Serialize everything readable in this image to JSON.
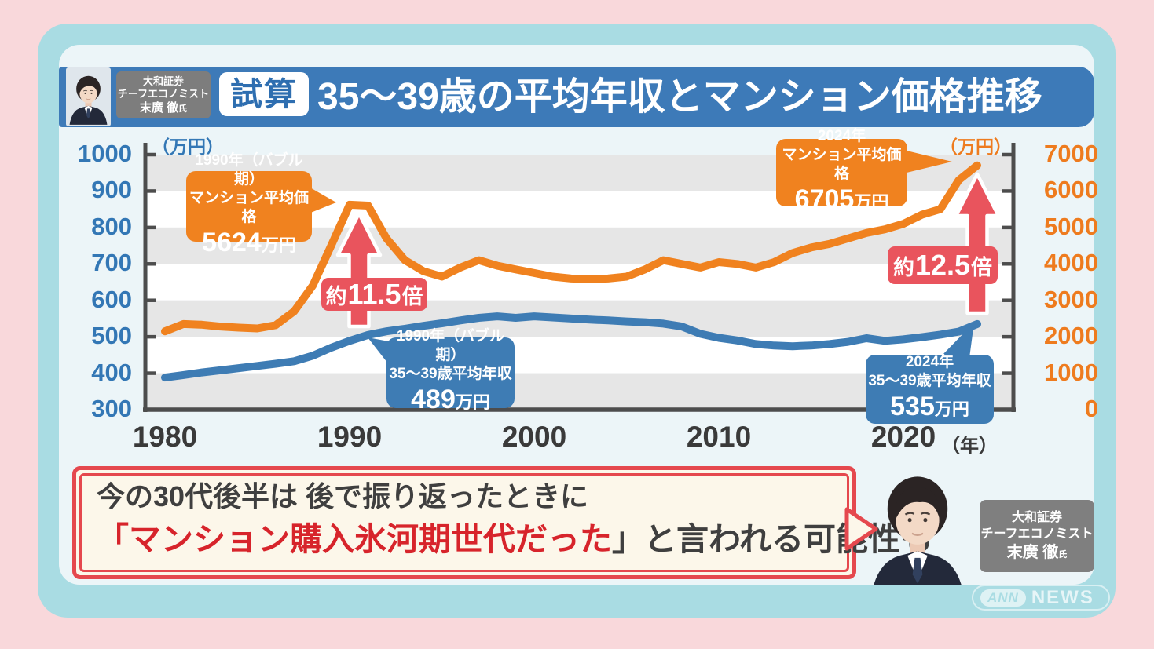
{
  "header": {
    "tag": "試算",
    "title": "35〜39歳の平均年収とマンション価格推移"
  },
  "expert": {
    "line1": "大和証券",
    "line2": "チーフエコノミスト",
    "name": "末廣 徹",
    "honorific": "氏"
  },
  "chart_data": {
    "type": "line",
    "x": [
      1980,
      1981,
      1982,
      1983,
      1984,
      1985,
      1986,
      1987,
      1988,
      1989,
      1990,
      1991,
      1992,
      1993,
      1994,
      1995,
      1996,
      1997,
      1998,
      1999,
      2000,
      2001,
      2002,
      2003,
      2004,
      2005,
      2006,
      2007,
      2008,
      2009,
      2010,
      2011,
      2012,
      2013,
      2014,
      2015,
      2016,
      2017,
      2018,
      2019,
      2020,
      2021,
      2022,
      2023,
      2024
    ],
    "series": [
      {
        "name": "35〜39歳平均年収",
        "axis": "left",
        "color": "#3e7cb4",
        "values": [
          388,
          395,
          402,
          408,
          414,
          420,
          426,
          433,
          448,
          470,
          489,
          505,
          515,
          522,
          530,
          537,
          545,
          552,
          556,
          552,
          556,
          553,
          550,
          547,
          545,
          542,
          540,
          536,
          528,
          508,
          497,
          490,
          480,
          476,
          474,
          476,
          480,
          486,
          496,
          489,
          493,
          499,
          506,
          514,
          535
        ]
      },
      {
        "name": "マンション平均価格",
        "axis": "right",
        "color": "#f0821f",
        "values": [
          2150,
          2350,
          2330,
          2280,
          2250,
          2230,
          2320,
          2700,
          3400,
          4500,
          5624,
          5600,
          4700,
          4100,
          3800,
          3650,
          3900,
          4100,
          3950,
          3850,
          3750,
          3650,
          3600,
          3580,
          3600,
          3650,
          3850,
          4100,
          4000,
          3900,
          4050,
          4000,
          3900,
          4050,
          4300,
          4450,
          4550,
          4700,
          4850,
          4950,
          5100,
          5350,
          5500,
          6300,
          6705
        ]
      }
    ],
    "left_axis": {
      "unit": "（万円）",
      "ticks": [
        1000,
        900,
        800,
        700,
        600,
        500,
        400,
        300
      ],
      "range": [
        300,
        1000
      ],
      "color": "#3377b5"
    },
    "right_axis": {
      "unit": "（万円）",
      "ticks": [
        7000,
        6000,
        5000,
        4000,
        3000,
        2000,
        1000,
        0
      ],
      "range": [
        0,
        7000
      ],
      "color": "#ee7b1e"
    },
    "x_axis": {
      "ticks": [
        1980,
        1990,
        2000,
        2010,
        2020
      ],
      "unit": "（年）"
    },
    "grid": "alternating horizontal bands",
    "legend_position": "none"
  },
  "callouts": {
    "mansion_1990": {
      "line1": "1990年（バブル期）",
      "line2": "マンション平均価格",
      "value": "5624",
      "unit": "万円"
    },
    "income_1990": {
      "line1": "1990年（バブル期）",
      "line2": "35〜39歳平均年収",
      "value": "489",
      "unit": "万円"
    },
    "mansion_2024": {
      "line1": "2024年",
      "line2": "マンション平均価格",
      "value": "6705",
      "unit": "万円"
    },
    "income_2024": {
      "line1": "2024年",
      "line2": "35〜39歳平均年収",
      "value": "535",
      "unit": "万円"
    }
  },
  "multipliers": {
    "m1990": {
      "prefix": "約",
      "value": "11.5",
      "suffix": "倍"
    },
    "m2024": {
      "prefix": "約",
      "value": "12.5",
      "suffix": "倍"
    }
  },
  "message": {
    "line1": "今の30代後半は 後で振り返ったときに",
    "line2_red": "「マンション購入氷河期世代だった",
    "line2_rest": "」と言われる可能性も"
  },
  "logo": {
    "ann": "ANN",
    "news": "NEWS"
  },
  "colors": {
    "background_pink": "#f9d8db",
    "frame_teal": "#a9dce3",
    "panel": "#ecf5f8",
    "header_blue": "#3d7ab8",
    "income_blue": "#3e7cb4",
    "mansion_orange": "#f0821f",
    "accent_red": "#e9545d",
    "message_red": "#d7242b",
    "message_cream": "#fcf7ea",
    "band_gray": "#e6e6e6",
    "axis_gray": "#4d4d4d"
  }
}
